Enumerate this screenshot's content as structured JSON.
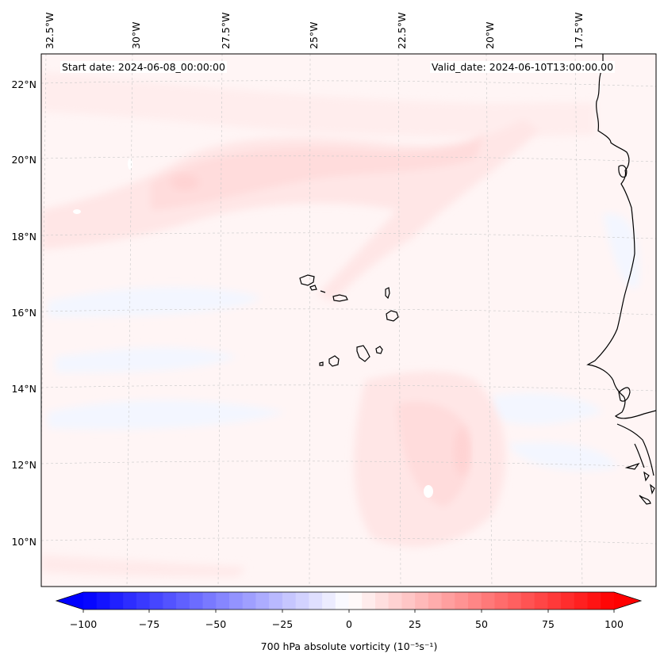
{
  "map": {
    "start_label": "Start date: 2024-06-08_00:00:00",
    "valid_label": "Valid_date: 2024-06-10T13:00:00.00",
    "lon_labels": [
      "32.5°W",
      "30°W",
      "27.5°W",
      "25°W",
      "22.5°W",
      "20°W",
      "17.5°W"
    ],
    "lat_labels": [
      "22°N",
      "20°N",
      "18°N",
      "16°N",
      "14°N",
      "12°N",
      "10°N"
    ],
    "extent": {
      "lon_min": -33.0,
      "lon_max": -16.0,
      "lat_min": 9.0,
      "lat_max": 22.8
    },
    "field": "700 hPa absolute vorticity",
    "gridlines": true,
    "coastline_color": "#000000"
  },
  "colorbar": {
    "label": "700 hPa absolute vorticity (10⁻⁵s⁻¹)",
    "ticks": [
      "−100",
      "−75",
      "−50",
      "−25",
      "0",
      "25",
      "50",
      "75",
      "100"
    ],
    "min": -100,
    "max": 100,
    "extend": "both",
    "colormap": "bwr",
    "negative_color": "#0000ff",
    "positive_color": "#ff0000",
    "neutral_color": "#ffffff"
  }
}
